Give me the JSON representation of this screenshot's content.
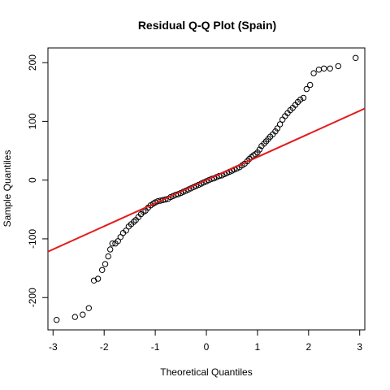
{
  "chart_data": {
    "type": "scatter",
    "title": "Residual Q-Q Plot (Spain)",
    "xlabel": "Theoretical Quantiles",
    "ylabel": "Sample Quantiles",
    "xlim": [
      -3.1,
      3.1
    ],
    "ylim": [
      -255,
      225
    ],
    "x_ticks": [
      -3,
      -2,
      -1,
      0,
      1,
      2,
      3
    ],
    "y_ticks": [
      -200,
      -100,
      0,
      100,
      200
    ],
    "grid": false,
    "colors": {
      "points": "#000000",
      "reference_line": "#e41a1c"
    },
    "reference_line": {
      "intercept": 0,
      "slope": 39.3
    },
    "series": [
      {
        "values": [
          [
            -2.93,
            -238
          ],
          [
            -2.57,
            -233
          ],
          [
            -2.42,
            -229
          ],
          [
            -2.3,
            -218
          ],
          [
            -2.2,
            -171
          ],
          [
            -2.12,
            -168
          ],
          [
            -2.04,
            -153
          ],
          [
            -1.98,
            -143
          ],
          [
            -1.92,
            -130
          ],
          [
            -1.88,
            -118
          ],
          [
            -1.84,
            -108
          ],
          [
            -1.78,
            -108
          ],
          [
            -1.73,
            -104
          ],
          [
            -1.68,
            -97
          ],
          [
            -1.63,
            -90
          ],
          [
            -1.57,
            -86
          ],
          [
            -1.52,
            -79
          ],
          [
            -1.47,
            -75
          ],
          [
            -1.42,
            -71
          ],
          [
            -1.38,
            -68
          ],
          [
            -1.33,
            -63
          ],
          [
            -1.28,
            -58
          ],
          [
            -1.23,
            -54
          ],
          [
            -1.19,
            -52
          ],
          [
            -1.14,
            -47
          ],
          [
            -1.09,
            -43
          ],
          [
            -1.04,
            -40
          ],
          [
            -1.0,
            -38
          ],
          [
            -0.95,
            -36
          ],
          [
            -0.9,
            -35
          ],
          [
            -0.85,
            -34
          ],
          [
            -0.8,
            -33
          ],
          [
            -0.75,
            -32
          ],
          [
            -0.7,
            -29
          ],
          [
            -0.65,
            -27
          ],
          [
            -0.6,
            -25
          ],
          [
            -0.55,
            -24
          ],
          [
            -0.5,
            -22
          ],
          [
            -0.45,
            -20
          ],
          [
            -0.4,
            -18
          ],
          [
            -0.35,
            -16
          ],
          [
            -0.3,
            -14
          ],
          [
            -0.25,
            -12
          ],
          [
            -0.2,
            -10
          ],
          [
            -0.15,
            -8
          ],
          [
            -0.1,
            -6
          ],
          [
            -0.05,
            -4
          ],
          [
            0.0,
            -2
          ],
          [
            0.05,
            0
          ],
          [
            0.1,
            2
          ],
          [
            0.15,
            3
          ],
          [
            0.2,
            5
          ],
          [
            0.25,
            7
          ],
          [
            0.3,
            8
          ],
          [
            0.35,
            10
          ],
          [
            0.4,
            12
          ],
          [
            0.45,
            14
          ],
          [
            0.5,
            16
          ],
          [
            0.55,
            18
          ],
          [
            0.6,
            20
          ],
          [
            0.65,
            22
          ],
          [
            0.7,
            25
          ],
          [
            0.75,
            28
          ],
          [
            0.8,
            32
          ],
          [
            0.84,
            36
          ],
          [
            0.88,
            39
          ],
          [
            0.92,
            42
          ],
          [
            0.96,
            44
          ],
          [
            1.0,
            47
          ],
          [
            1.04,
            52
          ],
          [
            1.08,
            58
          ],
          [
            1.13,
            62
          ],
          [
            1.17,
            66
          ],
          [
            1.21,
            70
          ],
          [
            1.25,
            74
          ],
          [
            1.3,
            78
          ],
          [
            1.35,
            83
          ],
          [
            1.39,
            88
          ],
          [
            1.44,
            95
          ],
          [
            1.49,
            103
          ],
          [
            1.54,
            109
          ],
          [
            1.59,
            114
          ],
          [
            1.64,
            119
          ],
          [
            1.69,
            123
          ],
          [
            1.74,
            128
          ],
          [
            1.79,
            133
          ],
          [
            1.84,
            137
          ],
          [
            1.9,
            140
          ],
          [
            1.96,
            155
          ],
          [
            2.03,
            162
          ],
          [
            2.1,
            182
          ],
          [
            2.2,
            188
          ],
          [
            2.3,
            190
          ],
          [
            2.42,
            190
          ],
          [
            2.58,
            194
          ],
          [
            2.92,
            208
          ]
        ]
      }
    ]
  }
}
